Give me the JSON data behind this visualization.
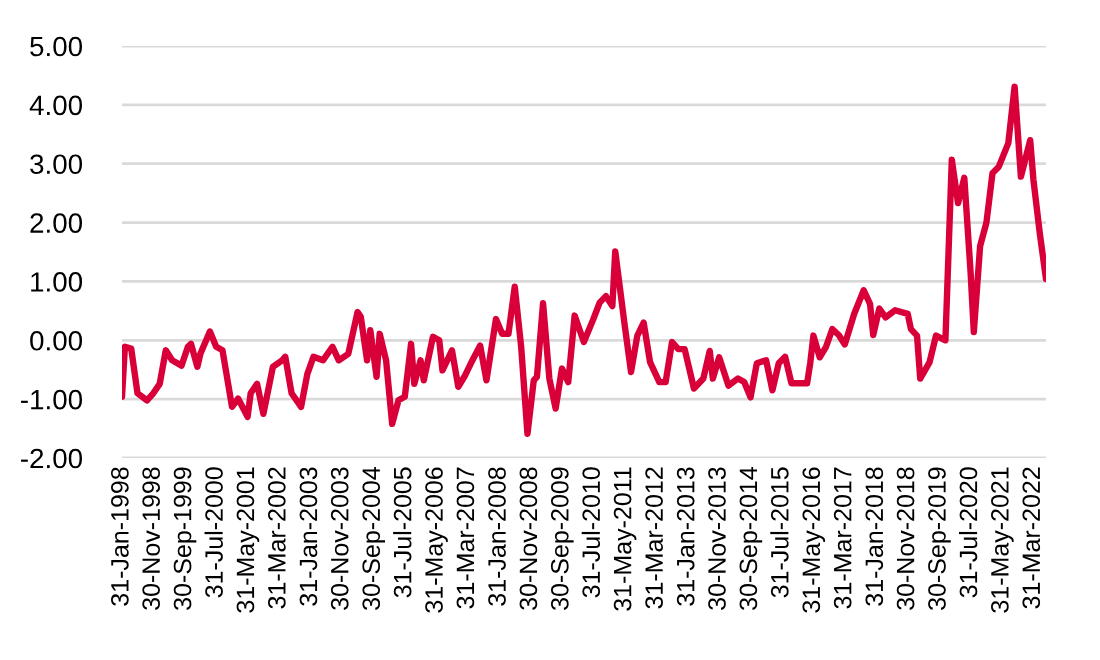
{
  "chart_data": {
    "type": "line",
    "x": [
      "1998-01",
      "1998-02",
      "1998-04",
      "1998-06",
      "1998-09",
      "1998-11",
      "1999-01",
      "1999-03",
      "1999-05",
      "1999-08",
      "1999-10",
      "1999-11",
      "2000-01",
      "2000-02",
      "2000-05",
      "2000-07",
      "2000-09",
      "2000-12",
      "2001-02",
      "2001-05",
      "2001-06",
      "2001-08",
      "2001-10",
      "2002-01",
      "2002-04",
      "2002-05",
      "2002-07",
      "2002-10",
      "2002-12",
      "2003-02",
      "2003-05",
      "2003-08",
      "2003-10",
      "2004-01",
      "2004-04",
      "2004-05",
      "2004-07",
      "2004-08",
      "2004-10",
      "2004-11",
      "2005-01",
      "2005-03",
      "2005-05",
      "2005-07",
      "2005-09",
      "2005-10",
      "2005-12",
      "2006-01",
      "2006-04",
      "2006-06",
      "2006-07",
      "2006-10",
      "2006-12",
      "2007-02",
      "2007-04",
      "2007-07",
      "2007-09",
      "2007-12",
      "2008-02",
      "2008-04",
      "2008-06",
      "2008-08",
      "2008-10",
      "2008-12",
      "2009-01",
      "2009-03",
      "2009-05",
      "2009-07",
      "2009-09",
      "2009-11",
      "2010-01",
      "2010-04",
      "2010-07",
      "2010-09",
      "2010-11",
      "2011-01",
      "2011-02",
      "2011-05",
      "2011-07",
      "2011-09",
      "2011-11",
      "2012-01",
      "2012-04",
      "2012-06",
      "2012-08",
      "2012-10",
      "2012-12",
      "2013-03",
      "2013-06",
      "2013-08",
      "2013-09",
      "2013-11",
      "2014-02",
      "2014-05",
      "2014-07",
      "2014-09",
      "2014-11",
      "2015-02",
      "2015-04",
      "2015-06",
      "2015-08",
      "2015-10",
      "2016-01",
      "2016-03",
      "2016-04",
      "2016-05",
      "2016-07",
      "2016-09",
      "2016-11",
      "2017-01",
      "2017-03",
      "2017-06",
      "2017-09",
      "2017-11",
      "2017-12",
      "2018-02",
      "2018-04",
      "2018-07",
      "2018-11",
      "2018-12",
      "2019-02",
      "2019-03",
      "2019-06",
      "2019-08",
      "2019-11",
      "2020-01",
      "2020-03",
      "2020-05",
      "2020-07",
      "2020-08",
      "2020-10",
      "2020-12",
      "2021-02",
      "2021-04",
      "2021-07",
      "2021-09",
      "2021-11",
      "2022-02",
      "2022-03",
      "2022-05",
      "2022-07"
    ],
    "series": [
      {
        "color": "#d9003a",
        "values": [
          -0.96,
          -0.11,
          -0.14,
          -0.9,
          -1.02,
          -0.9,
          -0.74,
          -0.17,
          -0.34,
          -0.43,
          -0.11,
          -0.06,
          -0.45,
          -0.23,
          0.15,
          -0.11,
          -0.17,
          -1.13,
          -0.99,
          -1.3,
          -0.9,
          -0.74,
          -1.25,
          -0.45,
          -0.34,
          -0.28,
          -0.9,
          -1.13,
          -0.57,
          -0.28,
          -0.34,
          -0.11,
          -0.34,
          -0.23,
          0.48,
          0.4,
          -0.34,
          0.17,
          -0.62,
          0.11,
          -0.34,
          -1.42,
          -1.02,
          -0.96,
          -0.06,
          -0.74,
          -0.34,
          -0.68,
          0.06,
          0.0,
          -0.51,
          -0.17,
          -0.79,
          -0.62,
          -0.4,
          -0.09,
          -0.68,
          0.36,
          0.11,
          0.11,
          0.91,
          -0.11,
          -1.59,
          -0.68,
          -0.62,
          0.63,
          -0.65,
          -1.16,
          -0.48,
          -0.71,
          0.42,
          -0.03,
          0.36,
          0.64,
          0.75,
          0.58,
          1.51,
          0.25,
          -0.54,
          0.08,
          0.3,
          -0.37,
          -0.71,
          -0.71,
          -0.03,
          -0.15,
          -0.15,
          -0.82,
          -0.65,
          -0.18,
          -0.65,
          -0.29,
          -0.77,
          -0.65,
          -0.71,
          -0.97,
          -0.39,
          -0.34,
          -0.85,
          -0.39,
          -0.28,
          -0.73,
          -0.73,
          -0.73,
          -0.39,
          0.08,
          -0.29,
          -0.11,
          0.19,
          0.09,
          -0.07,
          0.45,
          0.85,
          0.62,
          0.09,
          0.54,
          0.39,
          0.51,
          0.45,
          0.19,
          0.08,
          -0.65,
          -0.37,
          0.08,
          0.0,
          3.07,
          2.33,
          2.76,
          1.15,
          0.14,
          1.6,
          2.0,
          2.84,
          2.95,
          3.35,
          4.31,
          2.78,
          3.4,
          2.73,
          1.83,
          1.04
        ]
      }
    ],
    "xlim": [
      "1998-01",
      "2022-07"
    ],
    "xticks": [
      {
        "value": "1998-01-31",
        "label": "31-Jan-1998"
      },
      {
        "value": "1998-11-30",
        "label": "30-Nov-1998"
      },
      {
        "value": "1999-09-30",
        "label": "30-Sep-1999"
      },
      {
        "value": "2000-07-31",
        "label": "31-Jul-2000"
      },
      {
        "value": "2001-05-31",
        "label": "31-May-2001"
      },
      {
        "value": "2002-03-31",
        "label": "31-Mar-2002"
      },
      {
        "value": "2003-01-31",
        "label": "31-Jan-2003"
      },
      {
        "value": "2003-11-30",
        "label": "30-Nov-2003"
      },
      {
        "value": "2004-09-30",
        "label": "30-Sep-2004"
      },
      {
        "value": "2005-07-31",
        "label": "31-Jul-2005"
      },
      {
        "value": "2006-05-31",
        "label": "31-May-2006"
      },
      {
        "value": "2007-03-31",
        "label": "31-Mar-2007"
      },
      {
        "value": "2008-01-31",
        "label": "31-Jan-2008"
      },
      {
        "value": "2008-11-30",
        "label": "30-Nov-2008"
      },
      {
        "value": "2009-09-30",
        "label": "30-Sep-2009"
      },
      {
        "value": "2010-07-31",
        "label": "31-Jul-2010"
      },
      {
        "value": "2011-05-31",
        "label": "31-May-2011"
      },
      {
        "value": "2012-03-31",
        "label": "31-Mar-2012"
      },
      {
        "value": "2013-01-31",
        "label": "31-Jan-2013"
      },
      {
        "value": "2013-11-30",
        "label": "30-Nov-2013"
      },
      {
        "value": "2014-09-30",
        "label": "30-Sep-2014"
      },
      {
        "value": "2015-07-31",
        "label": "31-Jul-2015"
      },
      {
        "value": "2016-05-31",
        "label": "31-May-2016"
      },
      {
        "value": "2017-03-31",
        "label": "31-Mar-2017"
      },
      {
        "value": "2018-01-31",
        "label": "31-Jan-2018"
      },
      {
        "value": "2018-11-30",
        "label": "30-Nov-2018"
      },
      {
        "value": "2019-09-30",
        "label": "30-Sep-2019"
      },
      {
        "value": "2020-07-31",
        "label": "31-Jul-2020"
      },
      {
        "value": "2021-05-31",
        "label": "31-May-2021"
      },
      {
        "value": "2022-03-31",
        "label": "31-Mar-2022"
      }
    ],
    "ylim": [
      -2,
      5
    ],
    "yticks": [
      {
        "value": -2,
        "label": "-2.00"
      },
      {
        "value": -1,
        "label": "-1.00"
      },
      {
        "value": 0,
        "label": "0.00"
      },
      {
        "value": 1,
        "label": "1.00"
      },
      {
        "value": 2,
        "label": "2.00"
      },
      {
        "value": 3,
        "label": "3.00"
      },
      {
        "value": 4,
        "label": "4.00"
      },
      {
        "value": 5,
        "label": "5.00"
      }
    ],
    "grid": "y",
    "marker": "none",
    "line_style": "solid"
  }
}
